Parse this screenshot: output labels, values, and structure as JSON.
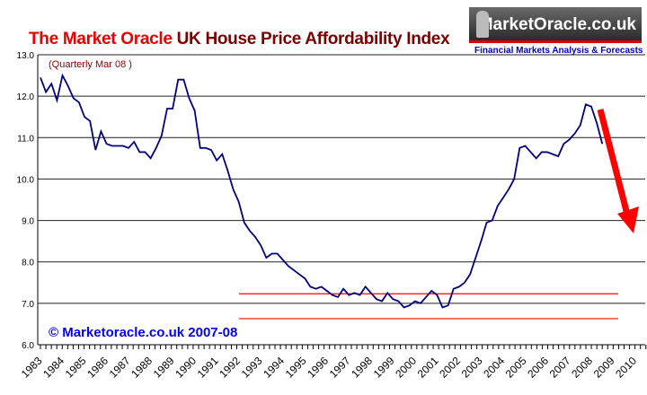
{
  "chart_data": {
    "type": "line",
    "title_part1": "The Market Oracle",
    "title_part2": "UK House Price Affordability Index",
    "subtitle": "(Quarterly Mar 08 )",
    "copyright": "© Marketoracle.co.uk 2007-08",
    "logo_text": "MarketOracle.co.uk",
    "logo_tagline": "Financial Markets Analysis & Forecasts",
    "ylim": [
      6,
      13
    ],
    "yticks": [
      "6.0",
      "7.0",
      "8.0",
      "9.0",
      "10.0",
      "11.0",
      "12.0",
      "13.0"
    ],
    "xticks": [
      "1983",
      "1984",
      "1985",
      "1986",
      "1987",
      "1988",
      "1989",
      "1990",
      "1991",
      "1992",
      "1993",
      "1994",
      "1995",
      "1996",
      "1997",
      "1998",
      "1999",
      "2000",
      "2001",
      "2002",
      "2003",
      "2004",
      "2005",
      "2006",
      "2007",
      "2008",
      "2009",
      "2010"
    ],
    "x_start": 1983,
    "series": [
      {
        "name": "Affordability Index",
        "color": "#000080",
        "values": [
          12.45,
          12.1,
          12.3,
          11.9,
          12.5,
          12.25,
          11.95,
          11.85,
          11.5,
          11.4,
          10.7,
          11.15,
          10.85,
          10.8,
          10.8,
          10.8,
          10.75,
          10.9,
          10.65,
          10.65,
          10.5,
          10.75,
          11.05,
          11.7,
          11.7,
          12.4,
          12.4,
          11.95,
          11.65,
          10.75,
          10.75,
          10.7,
          10.45,
          10.6,
          10.2,
          9.75,
          9.45,
          8.95,
          8.75,
          8.6,
          8.4,
          8.1,
          8.2,
          8.2,
          8.05,
          7.9,
          7.8,
          7.7,
          7.6,
          7.4,
          7.35,
          7.4,
          7.3,
          7.2,
          7.15,
          7.35,
          7.2,
          7.25,
          7.2,
          7.4,
          7.25,
          7.1,
          7.05,
          7.25,
          7.1,
          7.05,
          6.9,
          6.95,
          7.05,
          7.0,
          7.15,
          7.3,
          7.2,
          6.9,
          6.95,
          7.35,
          7.4,
          7.5,
          7.7,
          8.1,
          8.5,
          8.95,
          9.0,
          9.35,
          9.55,
          9.75,
          10.0,
          10.75,
          10.8,
          10.65,
          10.5,
          10.65,
          10.65,
          10.6,
          10.55,
          10.85,
          10.95,
          11.1,
          11.3,
          11.8,
          11.75,
          11.35,
          10.85
        ]
      }
    ],
    "annotations": {
      "support_lines": [
        7.23,
        6.63
      ],
      "arrow": "downward forecast",
      "accent": "#ff0000"
    }
  }
}
